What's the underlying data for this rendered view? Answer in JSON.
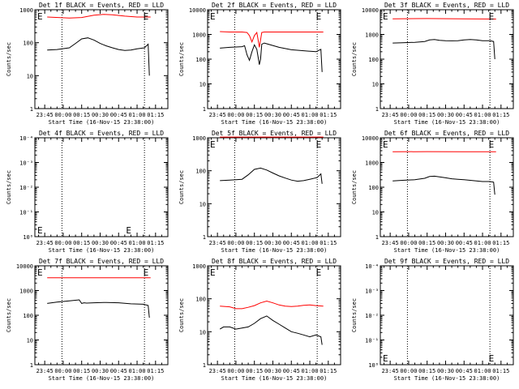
{
  "x_ticks": [
    "23:45",
    "00:00",
    "00:15",
    "00:30",
    "00:45",
    "01:00",
    "01:15"
  ],
  "chart_data": [
    {
      "type": "line",
      "title": "Det 1f BLACK = Events, RED = LLD",
      "xlabel": "Start Time (16-Nov-15 23:38:00)",
      "ylabel": "Counts/sec",
      "ylog": true,
      "ylim": [
        1,
        1000
      ],
      "ytick_labels": [
        "1",
        "10",
        "100",
        "1000"
      ],
      "xlim_min": [
        -8,
        100
      ],
      "xrange_min": [
        2,
        86
      ],
      "dotted_x_min": [
        14,
        81
      ],
      "marker_label": "E",
      "marker_x_min": [
        -6,
        80
      ],
      "series": [
        {
          "color": "#ff0000",
          "x": [
            2,
            20,
            30,
            40,
            48,
            55,
            65,
            75,
            86
          ],
          "y": [
            600,
            560,
            580,
            680,
            720,
            700,
            640,
            600,
            600
          ]
        },
        {
          "color": "#000000",
          "x": [
            2,
            10,
            20,
            25,
            30,
            35,
            40,
            45,
            50,
            55,
            60,
            65,
            70,
            75,
            81,
            84,
            85
          ],
          "y": [
            60,
            62,
            70,
            95,
            130,
            140,
            120,
            95,
            80,
            70,
            62,
            58,
            60,
            65,
            70,
            90,
            10
          ]
        }
      ]
    },
    {
      "type": "line",
      "title": "Det 2f BLACK = Events, RED = LLD",
      "xlabel": "Start Time (16-Nov-15 23:38:00)",
      "ylabel": "Counts/sec",
      "ylog": true,
      "ylim": [
        1,
        10000
      ],
      "ytick_labels": [
        "1",
        "10",
        "100",
        "1000",
        "10000"
      ],
      "xlim_min": [
        -8,
        100
      ],
      "xrange_min": [
        2,
        86
      ],
      "dotted_x_min": [
        14,
        81
      ],
      "marker_label": "E",
      "marker_x_min": [
        -6,
        80
      ],
      "series": [
        {
          "color": "#ff0000",
          "x": [
            2,
            10,
            20,
            24,
            26,
            28,
            30,
            32,
            33,
            34,
            35,
            36,
            38,
            40,
            50,
            60,
            70,
            80,
            86
          ],
          "y": [
            1300,
            1250,
            1250,
            1200,
            900,
            500,
            900,
            1200,
            600,
            300,
            600,
            1200,
            1250,
            1250,
            1250,
            1250,
            1250,
            1250,
            1250
          ]
        },
        {
          "color": "#000000",
          "x": [
            2,
            10,
            20,
            22,
            24,
            26,
            28,
            30,
            32,
            33,
            34,
            35,
            36,
            38,
            40,
            50,
            60,
            70,
            80,
            84,
            85
          ],
          "y": [
            280,
            300,
            320,
            350,
            150,
            90,
            200,
            380,
            250,
            120,
            60,
            100,
            400,
            450,
            420,
            300,
            240,
            220,
            200,
            250,
            30
          ]
        }
      ]
    },
    {
      "type": "line",
      "title": "Det 3f BLACK = Events, RED = LLD",
      "xlabel": "Start Time (16-Nov-15 23:38:00)",
      "ylabel": "Counts/sec",
      "ylog": true,
      "ylim": [
        1,
        10000
      ],
      "ytick_labels": [
        "1",
        "10",
        "100",
        "1000",
        "10000"
      ],
      "xlim_min": [
        -8,
        100
      ],
      "xrange_min": [
        2,
        86
      ],
      "dotted_x_min": [
        14,
        81
      ],
      "marker_label": "E",
      "marker_x_min": [
        -6,
        80
      ],
      "series": [
        {
          "color": "#ff0000",
          "x": [
            2,
            30,
            60,
            86
          ],
          "y": [
            4300,
            4400,
            4300,
            4200
          ]
        },
        {
          "color": "#000000",
          "x": [
            2,
            10,
            20,
            28,
            32,
            36,
            40,
            45,
            50,
            55,
            60,
            65,
            70,
            75,
            81,
            84,
            85
          ],
          "y": [
            450,
            460,
            480,
            520,
            600,
            620,
            580,
            560,
            550,
            560,
            600,
            620,
            600,
            560,
            560,
            520,
            100
          ]
        }
      ]
    },
    {
      "type": "line",
      "title": "Det 4f BLACK = Events, RED = LLD",
      "xlabel": "Start Time (16-Nov-15 23:38:00)",
      "ylabel": "Counts/sec",
      "ylog": true,
      "ylim": [
        1,
        10000
      ],
      "ytick_labels": [
        "10⁰",
        "10⁻¹",
        "10⁻²",
        "10⁻³",
        "10⁻⁴"
      ],
      "xlim_min": [
        -8,
        100
      ],
      "xrange_min": [
        2,
        86
      ],
      "dotted_x_min": [
        14,
        81
      ],
      "marker_label": "E",
      "marker_x_min": [
        -6,
        66
      ],
      "series": []
    },
    {
      "type": "line",
      "title": "Det 5f BLACK = Events, RED = LLD",
      "xlabel": "Start Time (16-Nov-15 23:38:00)",
      "ylabel": "Counts/sec",
      "ylog": true,
      "ylim": [
        1,
        1000
      ],
      "ytick_labels": [
        "1",
        "10",
        "100",
        "1000"
      ],
      "xlim_min": [
        -8,
        100
      ],
      "xrange_min": [
        2,
        86
      ],
      "dotted_x_min": [
        14,
        81
      ],
      "marker_label": "E",
      "marker_x_min": [
        -6,
        80
      ],
      "series": [
        {
          "color": "#ff0000",
          "x": [
            2,
            86
          ],
          "y": [
            1050,
            1050
          ]
        },
        {
          "color": "#000000",
          "x": [
            2,
            10,
            20,
            25,
            30,
            35,
            40,
            45,
            50,
            55,
            60,
            65,
            70,
            75,
            81,
            84,
            85
          ],
          "y": [
            50,
            52,
            55,
            75,
            110,
            120,
            105,
            85,
            70,
            60,
            52,
            48,
            50,
            55,
            62,
            80,
            40
          ]
        }
      ]
    },
    {
      "type": "line",
      "title": "Det 6f BLACK = Events, RED = LLD",
      "xlabel": "Start Time (16-Nov-15 23:38:00)",
      "ylabel": "Counts/sec",
      "ylog": true,
      "ylim": [
        1,
        10000
      ],
      "ytick_labels": [
        "1",
        "10",
        "100",
        "1000",
        "10000"
      ],
      "xlim_min": [
        -8,
        100
      ],
      "xrange_min": [
        2,
        86
      ],
      "dotted_x_min": [
        14,
        81
      ],
      "marker_label": "E",
      "marker_x_min": [
        -6,
        80
      ],
      "series": [
        {
          "color": "#ff0000",
          "x": [
            2,
            30,
            60,
            86
          ],
          "y": [
            2700,
            2750,
            2700,
            2700
          ]
        },
        {
          "color": "#000000",
          "x": [
            2,
            10,
            20,
            28,
            32,
            36,
            40,
            45,
            50,
            55,
            60,
            65,
            70,
            75,
            81,
            84,
            85
          ],
          "y": [
            180,
            190,
            200,
            230,
            270,
            280,
            260,
            240,
            220,
            210,
            200,
            190,
            180,
            170,
            170,
            160,
            50
          ]
        }
      ]
    },
    {
      "type": "line",
      "title": "Det 7f BLACK = Events, RED = LLD",
      "xlabel": "Start Time (16-Nov-15 23:38:00)",
      "ylabel": "Counts/sec",
      "ylog": true,
      "ylim": [
        1,
        10000
      ],
      "ytick_labels": [
        "1",
        "10",
        "100",
        "1000",
        "10000"
      ],
      "xlim_min": [
        -8,
        100
      ],
      "xrange_min": [
        2,
        86
      ],
      "dotted_x_min": [
        14,
        81
      ],
      "marker_label": "E",
      "marker_x_min": [
        -6,
        80
      ],
      "series": [
        {
          "color": "#ff0000",
          "x": [
            2,
            40,
            86
          ],
          "y": [
            3300,
            3300,
            3300
          ]
        },
        {
          "color": "#000000",
          "x": [
            2,
            10,
            20,
            28,
            30,
            32,
            34,
            40,
            50,
            60,
            70,
            80,
            84,
            85
          ],
          "y": [
            300,
            340,
            380,
            420,
            300,
            320,
            310,
            320,
            330,
            320,
            290,
            280,
            250,
            80
          ]
        }
      ]
    },
    {
      "type": "line",
      "title": "Det 8f BLACK = Events, RED = LLD",
      "xlabel": "Start Time (16-Nov-15 23:38:00)",
      "ylabel": "Counts/sec",
      "ylog": true,
      "ylim": [
        1,
        1000
      ],
      "ytick_labels": [
        "1",
        "10",
        "100",
        "1000"
      ],
      "xlim_min": [
        -8,
        100
      ],
      "xrange_min": [
        2,
        86
      ],
      "dotted_x_min": [
        14,
        81
      ],
      "marker_label": "E",
      "marker_x_min": [
        -6,
        80
      ],
      "series": [
        {
          "color": "#ff0000",
          "x": [
            2,
            10,
            15,
            20,
            25,
            30,
            35,
            40,
            45,
            50,
            55,
            60,
            65,
            70,
            75,
            80,
            86
          ],
          "y": [
            60,
            57,
            50,
            50,
            55,
            62,
            75,
            85,
            75,
            65,
            60,
            58,
            60,
            63,
            65,
            62,
            60
          ]
        },
        {
          "color": "#000000",
          "x": [
            2,
            5,
            10,
            15,
            20,
            25,
            30,
            35,
            40,
            45,
            50,
            55,
            60,
            65,
            70,
            75,
            80,
            84,
            85
          ],
          "y": [
            12,
            14,
            14,
            12,
            13,
            14,
            18,
            25,
            30,
            22,
            17,
            13,
            10,
            9,
            8,
            7,
            8,
            7,
            4
          ]
        }
      ]
    },
    {
      "type": "line",
      "title": "Det 9f BLACK = Events, RED = LLD",
      "xlabel": "Start Time (16-Nov-15 23:38:00)",
      "ylabel": "Counts/sec",
      "ylog": true,
      "ylim": [
        1,
        10000
      ],
      "ytick_labels": [
        "10⁰",
        "10⁻¹",
        "10⁻²",
        "10⁻³",
        "10⁻⁴"
      ],
      "xlim_min": [
        -8,
        100
      ],
      "xrange_min": [
        2,
        86
      ],
      "dotted_x_min": [
        14,
        81
      ],
      "marker_label": "E",
      "marker_x_min": [
        -6,
        80
      ],
      "series": []
    }
  ]
}
